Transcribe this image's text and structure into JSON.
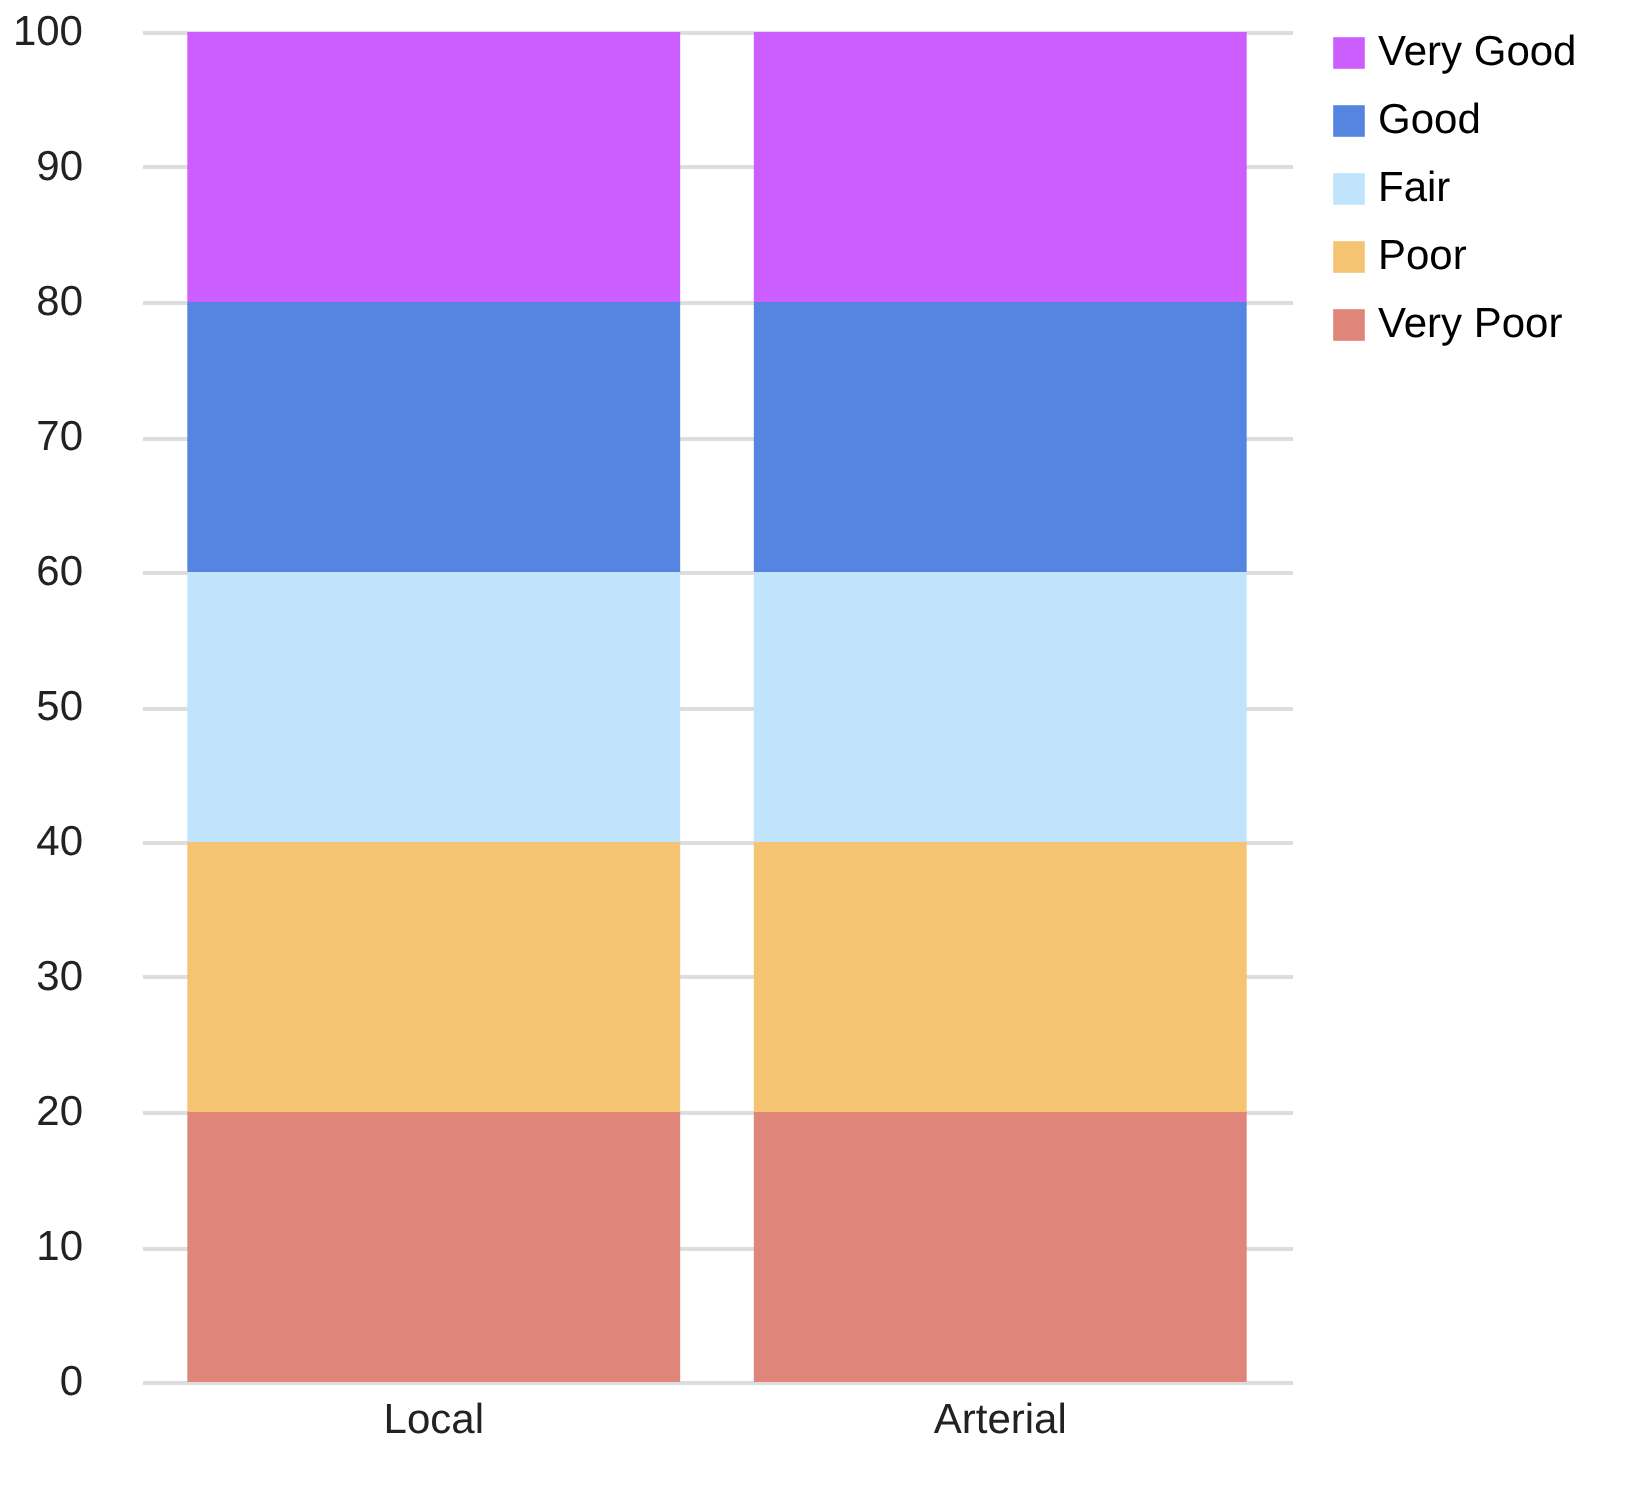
{
  "chart_data": {
    "type": "bar",
    "stacked": true,
    "categories": [
      "Local",
      "Arterial"
    ],
    "series": [
      {
        "name": "Very Poor",
        "color": "#e0857a",
        "values": [
          20,
          20
        ]
      },
      {
        "name": "Poor",
        "color": "#f5c473",
        "values": [
          20,
          20
        ]
      },
      {
        "name": "Fair",
        "color": "#c0e4fc",
        "values": [
          20,
          20
        ]
      },
      {
        "name": "Good",
        "color": "#5585e0",
        "values": [
          20,
          20
        ]
      },
      {
        "name": "Very Good",
        "color": "#cc5eff",
        "values": [
          20,
          20
        ]
      }
    ],
    "ylim": [
      0,
      100
    ],
    "yticks": [
      0,
      10,
      20,
      30,
      40,
      50,
      60,
      70,
      80,
      90,
      100
    ],
    "grid": "y",
    "legend": "right"
  }
}
